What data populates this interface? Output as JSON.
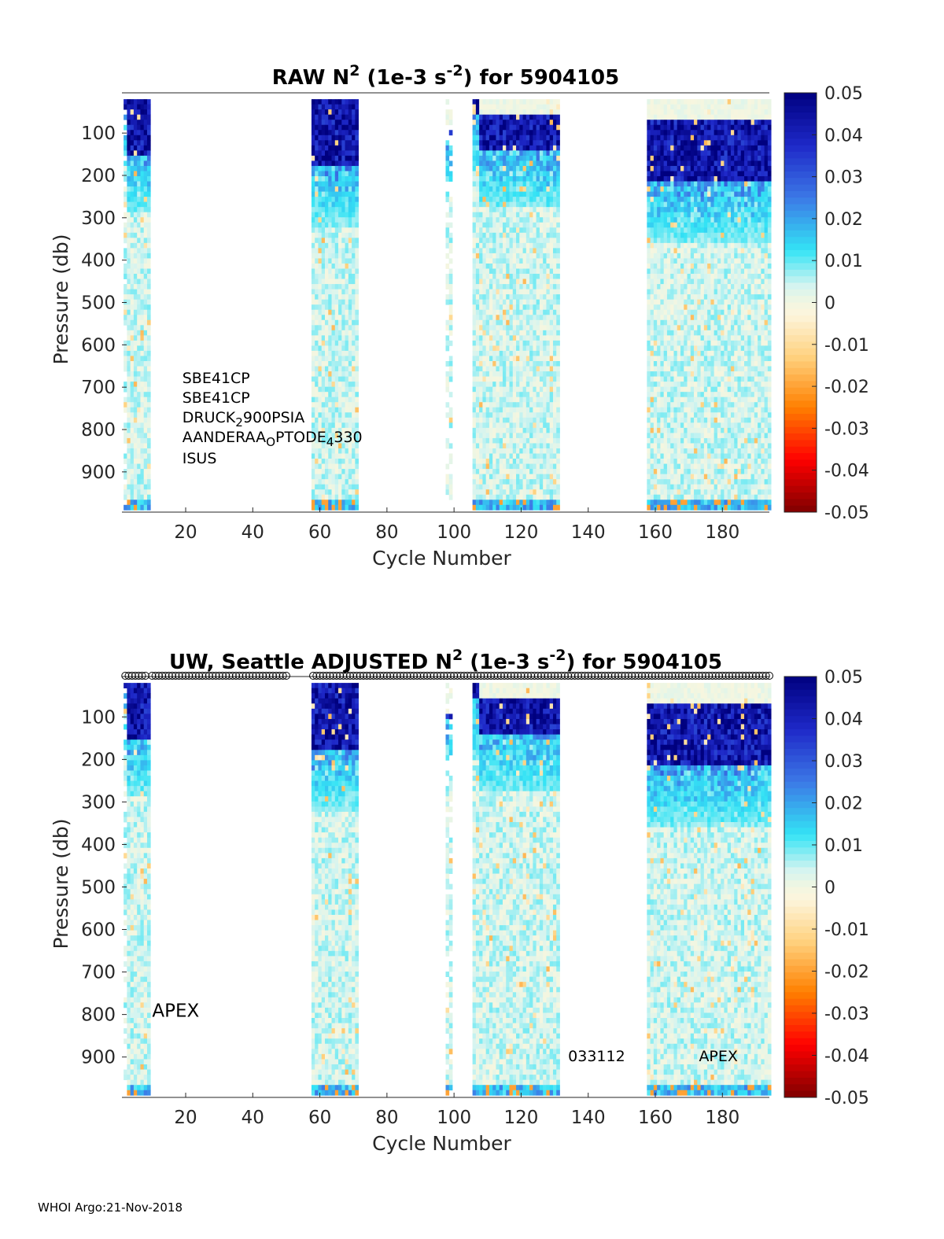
{
  "footer": "WHOI Argo:21-Nov-2018",
  "colormap": [
    [
      0.0,
      "#7f0000"
    ],
    [
      0.125,
      "#ff0000"
    ],
    [
      0.25,
      "#ff8000"
    ],
    [
      0.37,
      "#ffd27f"
    ],
    [
      0.47,
      "#fdf5dc"
    ],
    [
      0.5,
      "#f2f6e1"
    ],
    [
      0.54,
      "#d4f4f0"
    ],
    [
      0.625,
      "#33e3f5"
    ],
    [
      0.75,
      "#3c78e6"
    ],
    [
      0.875,
      "#1e28c8"
    ],
    [
      1.0,
      "#00007f"
    ]
  ],
  "chart_data": [
    {
      "type": "heatmap",
      "title": "RAW N² (1e-3 s⁻²) for 5904105",
      "title_parts": {
        "pre": "RAW N",
        "sup1": "2",
        "mid": " (1e-3 s",
        "sup2": "-2",
        "post": ") for 5904105"
      },
      "xlabel": "Cycle Number",
      "ylabel": "Pressure (db)",
      "xlim": [
        1,
        194
      ],
      "ylim": [
        5,
        995
      ],
      "y_reversed": true,
      "xticks": [
        20,
        40,
        60,
        80,
        100,
        120,
        140,
        160,
        180
      ],
      "yticks": [
        100,
        200,
        300,
        400,
        500,
        600,
        700,
        800,
        900
      ],
      "colorbar": {
        "clim": [
          -0.05,
          0.05
        ],
        "ticks": [
          "0.05",
          "0.04",
          "0.03",
          "0.02",
          "0.01",
          "0",
          "-0.01",
          "-0.02",
          "-0.03",
          "-0.04",
          "-0.05"
        ]
      },
      "data_segments": [
        {
          "cycles": [
            2,
            2
          ],
          "top_pressure": 20,
          "surface_layer": [
            20,
            40
          ],
          "note": "sparse"
        },
        {
          "cycles": [
            3,
            9
          ],
          "top_pressure": 20,
          "surface_layer": [
            20,
            150
          ]
        },
        {
          "cycles": [
            58,
            71
          ],
          "top_pressure": 20,
          "surface_layer": [
            20,
            180
          ]
        },
        {
          "cycles": [
            98,
            99
          ],
          "top_pressure": 20,
          "surface_layer": [
            90,
            110
          ],
          "note": "sparse"
        },
        {
          "cycles": [
            106,
            107
          ],
          "top_pressure": 20,
          "surface_layer": [
            20,
            60
          ]
        },
        {
          "cycles": [
            108,
            131
          ],
          "top_pressure": 20,
          "surface_layer": [
            60,
            140
          ]
        },
        {
          "cycles": [
            158,
            194
          ],
          "top_pressure": 20,
          "surface_layer": [
            70,
            220
          ]
        }
      ],
      "annotations": [
        {
          "lines": [
            {
              "t": "SBE41CP"
            }
          ],
          "cycle": 19,
          "pressure": 690
        },
        {
          "lines": [
            {
              "t": "SBE41CP"
            }
          ],
          "cycle": 19,
          "pressure": 737
        },
        {
          "lines": [
            {
              "t": "DRUCK"
            },
            {
              "t": "2",
              "sub": true
            },
            {
              "t": "900PSIA"
            }
          ],
          "cycle": 19,
          "pressure": 783
        },
        {
          "lines": [
            {
              "t": "AANDERAA"
            },
            {
              "t": "O",
              "sub": true
            },
            {
              "t": "PTODE"
            },
            {
              "t": "4",
              "sub": true
            },
            {
              "t": "330"
            }
          ],
          "cycle": 19,
          "pressure": 830
        },
        {
          "lines": [
            {
              "t": "ISUS"
            }
          ],
          "cycle": 19,
          "pressure": 880
        }
      ]
    },
    {
      "type": "heatmap",
      "title": "UW, Seattle  ADJUSTED N² (1e-3 s⁻²) for 5904105",
      "title_parts": {
        "pre": "UW, Seattle  ADJUSTED N",
        "sup1": "2",
        "mid": " (1e-3 s",
        "sup2": "-2",
        "post": ") for 5904105"
      },
      "xlabel": "Cycle Number",
      "ylabel": "Pressure (db)",
      "xlim": [
        1,
        194
      ],
      "ylim": [
        5,
        995
      ],
      "y_reversed": true,
      "xticks": [
        20,
        40,
        60,
        80,
        100,
        120,
        140,
        160,
        180
      ],
      "yticks": [
        100,
        200,
        300,
        400,
        500,
        600,
        700,
        800,
        900
      ],
      "colorbar": {
        "clim": [
          -0.05,
          0.05
        ],
        "ticks": [
          "0.05",
          "0.04",
          "0.03",
          "0.02",
          "0.01",
          "0",
          "-0.01",
          "-0.02",
          "-0.03",
          "-0.04",
          "-0.05"
        ]
      },
      "marker_cycle_ranges": [
        [
          2,
          8
        ],
        [
          10,
          50
        ],
        [
          58,
          194
        ]
      ],
      "data_segments": [
        {
          "cycles": [
            2,
            2
          ],
          "top_pressure": 20,
          "surface_layer": [
            20,
            40
          ],
          "note": "sparse"
        },
        {
          "cycles": [
            3,
            9
          ],
          "top_pressure": 20,
          "surface_layer": [
            20,
            150
          ]
        },
        {
          "cycles": [
            58,
            71
          ],
          "top_pressure": 20,
          "surface_layer": [
            20,
            180
          ]
        },
        {
          "cycles": [
            98,
            99
          ],
          "top_pressure": 20,
          "surface_layer": [
            90,
            110
          ],
          "note": "sparse"
        },
        {
          "cycles": [
            106,
            107
          ],
          "top_pressure": 20,
          "surface_layer": [
            20,
            60
          ]
        },
        {
          "cycles": [
            108,
            131
          ],
          "top_pressure": 20,
          "surface_layer": [
            60,
            140
          ]
        },
        {
          "cycles": [
            158,
            194
          ],
          "top_pressure": 20,
          "surface_layer": [
            70,
            220
          ]
        }
      ],
      "annotations": [
        {
          "lines": [
            {
              "t": "APEX"
            }
          ],
          "cycle": 10,
          "pressure": 805,
          "big": true
        },
        {
          "lines": [
            {
              "t": "033112"
            }
          ],
          "cycle": 134,
          "pressure": 910
        },
        {
          "lines": [
            {
              "t": "APEX"
            }
          ],
          "cycle": 173,
          "pressure": 910
        }
      ]
    }
  ]
}
